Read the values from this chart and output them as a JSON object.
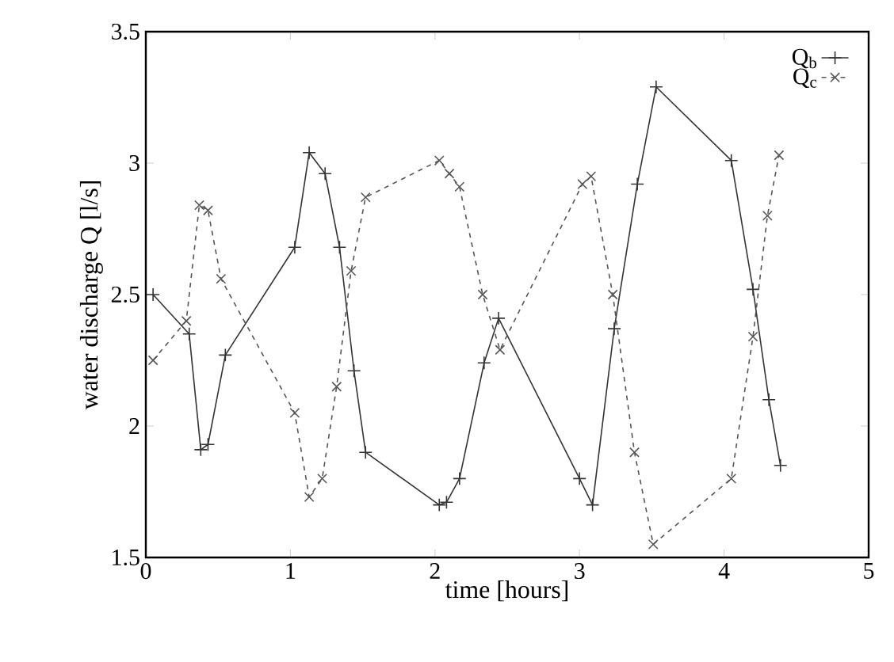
{
  "chart_data": {
    "type": "line",
    "xlabel": "time [hours]",
    "ylabel": "water discharge Q [l/s]",
    "xlim": [
      0,
      5
    ],
    "ylim": [
      1.5,
      3.5
    ],
    "xticks": [
      0,
      1,
      2,
      3,
      4,
      5
    ],
    "yticks": [
      1.5,
      2,
      2.5,
      3,
      3.5
    ],
    "grid": false,
    "legend": "top right",
    "series": [
      {
        "name": "Q$_{b}$",
        "color": "#333333",
        "line_style": "solid",
        "marker": "plus",
        "x": [
          0.05,
          0.3,
          0.38,
          0.43,
          0.55,
          1.03,
          1.13,
          1.24,
          1.34,
          1.44,
          1.52,
          2.03,
          2.08,
          2.17,
          2.34,
          2.44,
          3.0,
          3.09,
          3.24,
          3.4,
          3.53,
          4.05,
          4.2,
          4.31,
          4.39
        ],
        "values": [
          2.5,
          2.35,
          1.91,
          1.93,
          2.27,
          2.68,
          3.04,
          2.96,
          2.68,
          2.21,
          1.9,
          1.7,
          1.71,
          1.8,
          2.24,
          2.41,
          1.8,
          1.7,
          2.37,
          2.92,
          3.29,
          3.01,
          2.52,
          2.1,
          1.85
        ]
      },
      {
        "name": "Q$_{c}$",
        "color": "#555555",
        "line_style": "dashed",
        "marker": "cross",
        "x": [
          0.05,
          0.28,
          0.37,
          0.43,
          0.52,
          1.03,
          1.13,
          1.22,
          1.32,
          1.42,
          1.52,
          2.03,
          2.1,
          2.17,
          2.33,
          2.45,
          3.02,
          3.08,
          3.23,
          3.38,
          3.51,
          4.05,
          4.2,
          4.3,
          4.38
        ],
        "values": [
          2.25,
          2.4,
          2.84,
          2.82,
          2.56,
          2.05,
          1.73,
          1.8,
          2.15,
          2.59,
          2.87,
          3.01,
          2.96,
          2.91,
          2.5,
          2.29,
          2.92,
          2.95,
          2.5,
          1.9,
          1.55,
          1.8,
          2.34,
          2.8,
          3.03
        ]
      }
    ]
  }
}
